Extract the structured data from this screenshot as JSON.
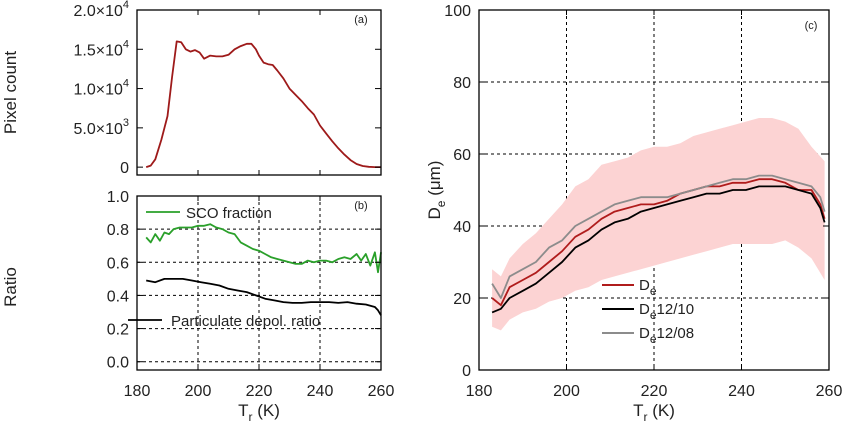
{
  "chart_data": [
    {
      "id": "a",
      "type": "line",
      "panel_label": "(a)",
      "ylabel": "Pixel count",
      "xlabel": "",
      "xlim": [
        180,
        260
      ],
      "ylim": [
        -1000,
        20000
      ],
      "x_ticks": [
        180,
        200,
        220,
        240,
        260
      ],
      "y_ticks": [
        {
          "value": 0,
          "label": "0",
          "exp": ""
        },
        {
          "value": 5000,
          "label": "5.0×10",
          "exp": "3"
        },
        {
          "value": 10000,
          "label": "1.0×10",
          "exp": "4"
        },
        {
          "value": 15000,
          "label": "1.5×10",
          "exp": "4"
        },
        {
          "value": 20000,
          "label": "2.0×10",
          "exp": "4"
        }
      ],
      "series": [
        {
          "color": "#9e1a1a",
          "x": [
            183,
            184.5,
            186,
            188,
            190,
            191.5,
            193,
            194.5,
            196,
            197.5,
            199,
            200.5,
            202,
            204,
            206,
            208,
            210,
            212,
            214,
            216,
            217.5,
            219,
            220,
            221.5,
            223,
            224.5,
            226,
            228,
            230,
            232,
            234,
            236,
            238,
            240,
            242,
            244,
            246,
            248,
            250,
            252,
            254,
            256,
            258,
            260
          ],
          "y": [
            0,
            200,
            1000,
            3500,
            6500,
            11500,
            16000,
            15900,
            15000,
            14700,
            14900,
            14600,
            13800,
            14200,
            14100,
            14100,
            14300,
            15000,
            15400,
            15700,
            15700,
            15000,
            14200,
            13300,
            13100,
            13000,
            12300,
            11300,
            10000,
            9200,
            8400,
            7500,
            6700,
            5300,
            4300,
            3300,
            2400,
            1600,
            900,
            400,
            150,
            50,
            0,
            0
          ]
        }
      ]
    },
    {
      "id": "b",
      "type": "line",
      "panel_label": "(b)",
      "ylabel": "Ratio",
      "xlabel": "T",
      "xlabel_sub": "r",
      "xlabel_unit": " (K)",
      "xlim": [
        180,
        260
      ],
      "ylim": [
        -0.05,
        1.0
      ],
      "x_ticks": [
        180,
        200,
        220,
        240,
        260
      ],
      "y_ticks": [
        {
          "value": 0.0,
          "label": "0.0"
        },
        {
          "value": 0.2,
          "label": "0.2"
        },
        {
          "value": 0.4,
          "label": "0.4"
        },
        {
          "value": 0.6,
          "label": "0.6"
        },
        {
          "value": 0.8,
          "label": "0.8"
        },
        {
          "value": 1.0,
          "label": "1.0"
        }
      ],
      "series": [
        {
          "name": "SCO fraction",
          "color": "#2aa02a",
          "x": [
            183,
            184.5,
            186,
            187.5,
            189,
            190.5,
            192,
            194,
            196,
            198,
            200,
            202,
            204,
            206,
            208,
            210,
            212,
            214,
            216,
            218,
            220,
            222,
            224,
            226,
            228,
            230,
            232,
            234,
            236,
            238,
            240,
            242,
            244,
            246,
            248,
            250,
            252,
            253.5,
            255,
            256.5,
            258,
            259,
            260
          ],
          "y": [
            0.75,
            0.72,
            0.77,
            0.73,
            0.78,
            0.77,
            0.8,
            0.81,
            0.81,
            0.81,
            0.82,
            0.82,
            0.83,
            0.81,
            0.8,
            0.78,
            0.77,
            0.72,
            0.7,
            0.68,
            0.67,
            0.65,
            0.63,
            0.62,
            0.61,
            0.6,
            0.59,
            0.59,
            0.61,
            0.6,
            0.61,
            0.61,
            0.6,
            0.62,
            0.63,
            0.62,
            0.65,
            0.61,
            0.65,
            0.58,
            0.66,
            0.54,
            0.66
          ]
        },
        {
          "name": "Particulate depol. ratio",
          "color": "#000000",
          "x": [
            183,
            186,
            189,
            192,
            195,
            198,
            201,
            204,
            207,
            210,
            213,
            216,
            219,
            222,
            225,
            228,
            231,
            234,
            237,
            240,
            243,
            246,
            249,
            252,
            255,
            258,
            259,
            260
          ],
          "y": [
            0.49,
            0.48,
            0.5,
            0.5,
            0.5,
            0.49,
            0.48,
            0.47,
            0.46,
            0.44,
            0.43,
            0.42,
            0.4,
            0.38,
            0.37,
            0.36,
            0.355,
            0.355,
            0.36,
            0.36,
            0.36,
            0.355,
            0.36,
            0.35,
            0.345,
            0.33,
            0.31,
            0.28
          ]
        }
      ]
    },
    {
      "id": "c",
      "type": "line",
      "panel_label": "(c)",
      "ylabel": "D",
      "ylabel_sub": "e",
      "ylabel_unit": " (μm)",
      "xlabel": "T",
      "xlabel_sub": "r",
      "xlabel_unit": " (K)",
      "xlim": [
        180,
        260
      ],
      "ylim": [
        0,
        100
      ],
      "x_ticks": [
        180,
        200,
        220,
        240,
        260
      ],
      "y_ticks": [
        {
          "value": 0,
          "label": "0"
        },
        {
          "value": 20,
          "label": "20"
        },
        {
          "value": 40,
          "label": "40"
        },
        {
          "value": 60,
          "label": "60"
        },
        {
          "value": 80,
          "label": "80"
        },
        {
          "value": 100,
          "label": "100"
        }
      ],
      "band": {
        "color": "#fcd3d3",
        "x": [
          183,
          185,
          187,
          190,
          193,
          196,
          199,
          202,
          205,
          208,
          211,
          214,
          217,
          220,
          223,
          226,
          229,
          232,
          235,
          238,
          241,
          244,
          247,
          250,
          253,
          256,
          259
        ],
        "upper": [
          28,
          26,
          31,
          35,
          38,
          42,
          46,
          51,
          53,
          57,
          58,
          59,
          61,
          62,
          62,
          63,
          65,
          66,
          67,
          68,
          69,
          70,
          70,
          69,
          67,
          62,
          58
        ],
        "lower": [
          12,
          11,
          14,
          16,
          17,
          19,
          20,
          22,
          23,
          25,
          26,
          27,
          28,
          29,
          30,
          31,
          32,
          33,
          34,
          35,
          35,
          35,
          35,
          36,
          34,
          31,
          25
        ]
      },
      "series": [
        {
          "name": "D",
          "name_sub": "e",
          "name_suffix": "",
          "color": "#b01c1c",
          "x": [
            183,
            185,
            187,
            190,
            193,
            196,
            199,
            202,
            205,
            208,
            211,
            214,
            217,
            220,
            223,
            226,
            229,
            232,
            235,
            238,
            241,
            244,
            247,
            250,
            253,
            256,
            258,
            259
          ],
          "y": [
            20,
            18,
            23,
            25,
            27,
            30,
            33,
            37,
            39,
            42,
            44,
            45,
            46,
            46,
            47,
            49,
            50,
            51,
            51,
            52,
            52,
            53,
            53,
            52,
            50,
            50,
            46,
            42
          ]
        },
        {
          "name": "D",
          "name_sub": "e",
          "name_suffix": "12/10",
          "color": "#000000",
          "x": [
            183,
            185,
            187,
            190,
            193,
            196,
            199,
            202,
            205,
            208,
            211,
            214,
            217,
            220,
            223,
            226,
            229,
            232,
            235,
            238,
            241,
            244,
            247,
            250,
            253,
            256,
            258,
            259
          ],
          "y": [
            16,
            17,
            20,
            22,
            24,
            27,
            30,
            34,
            36,
            39,
            41,
            42,
            44,
            45,
            46,
            47,
            48,
            49,
            49,
            50,
            50,
            51,
            51,
            51,
            50,
            49,
            45,
            41
          ]
        },
        {
          "name": "D",
          "name_sub": "e",
          "name_suffix": "12/08",
          "color": "#8c8c8c",
          "x": [
            183,
            185,
            187,
            190,
            193,
            196,
            199,
            202,
            205,
            208,
            211,
            214,
            217,
            220,
            223,
            226,
            229,
            232,
            235,
            238,
            241,
            244,
            247,
            250,
            253,
            256,
            258,
            259
          ],
          "y": [
            24,
            20,
            26,
            28,
            30,
            34,
            36,
            40,
            42,
            44,
            46,
            47,
            48,
            48,
            48,
            49,
            50,
            51,
            52,
            53,
            53,
            54,
            54,
            53,
            52,
            51,
            48,
            44
          ]
        }
      ]
    }
  ]
}
